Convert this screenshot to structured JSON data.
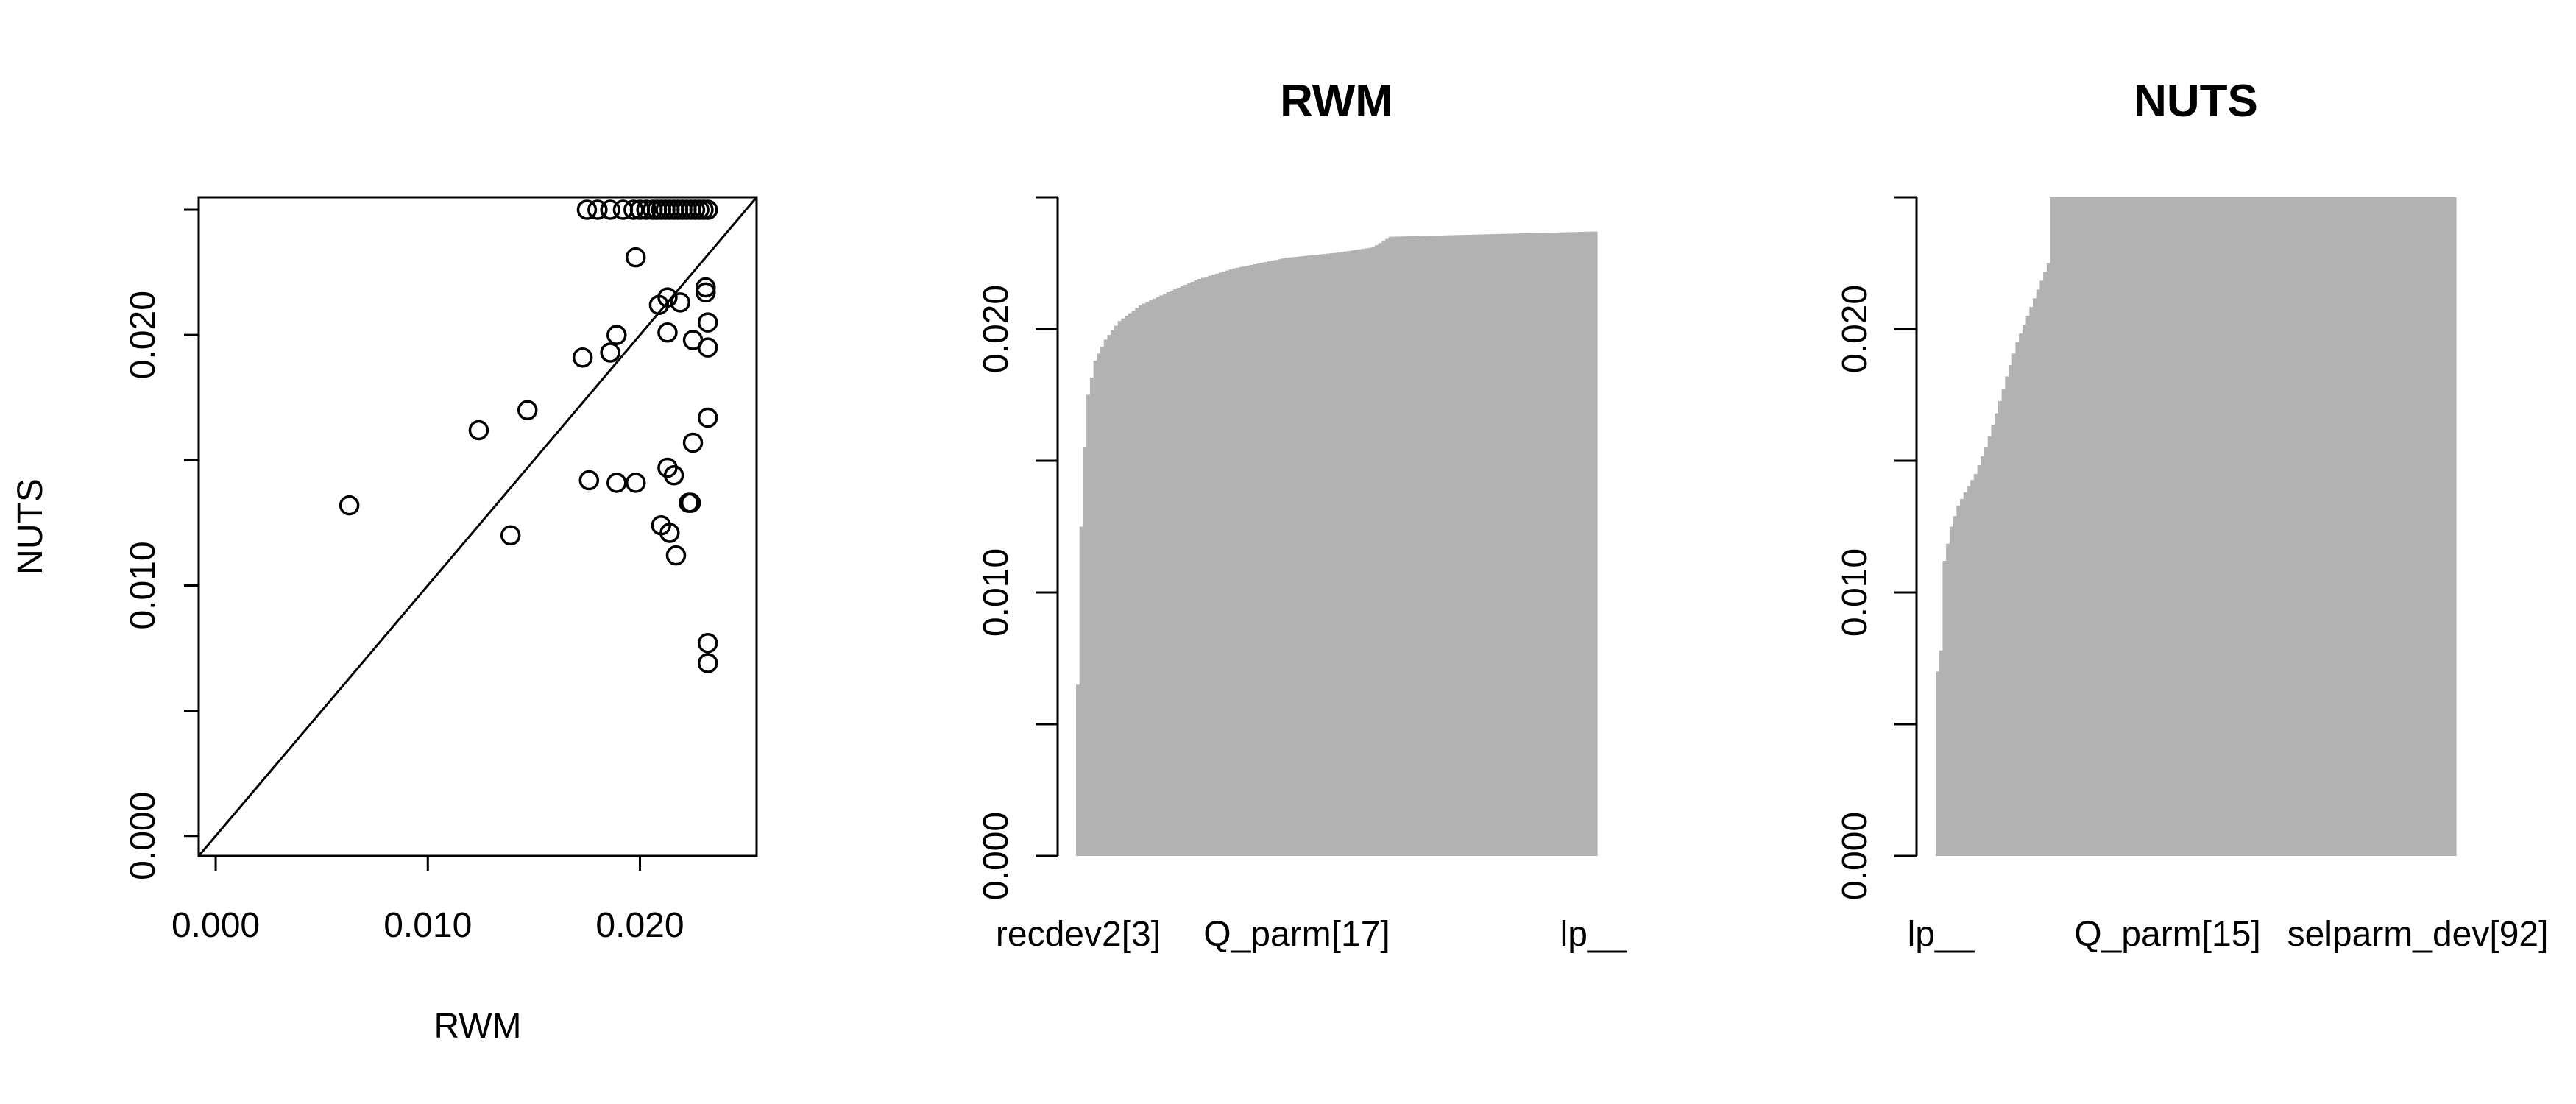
{
  "chart_data": [
    {
      "type": "scatter",
      "title": "",
      "xlabel": "RWM",
      "ylabel": "NUTS",
      "xlim": [
        -0.0008,
        0.0255
      ],
      "ylim": [
        -0.0008,
        0.0255
      ],
      "xticks": [
        0.0,
        0.01,
        0.02
      ],
      "xtick_labels": [
        "0.000",
        "0.010",
        "0.020"
      ],
      "yticks": [
        0.0,
        0.005,
        0.01,
        0.015,
        0.02,
        0.025
      ],
      "ytick_labels": [
        "0.000",
        "",
        "0.010",
        "",
        "0.020",
        ""
      ],
      "reference_line": "y = x",
      "box": true,
      "points": [
        [
          0.0063,
          0.0132
        ],
        [
          0.0124,
          0.0162
        ],
        [
          0.0139,
          0.012
        ],
        [
          0.0147,
          0.017
        ],
        [
          0.0173,
          0.0191
        ],
        [
          0.0176,
          0.0142
        ],
        [
          0.0186,
          0.0193
        ],
        [
          0.0189,
          0.02
        ],
        [
          0.0189,
          0.0141
        ],
        [
          0.0198,
          0.0141
        ],
        [
          0.0198,
          0.0231
        ],
        [
          0.0209,
          0.0212
        ],
        [
          0.021,
          0.0124
        ],
        [
          0.0213,
          0.0201
        ],
        [
          0.0213,
          0.0215
        ],
        [
          0.0213,
          0.0147
        ],
        [
          0.0214,
          0.0121
        ],
        [
          0.0216,
          0.0144
        ],
        [
          0.0217,
          0.0112
        ],
        [
          0.0219,
          0.0213
        ],
        [
          0.0223,
          0.0133
        ],
        [
          0.0224,
          0.0133
        ],
        [
          0.0225,
          0.0198
        ],
        [
          0.0225,
          0.0157
        ],
        [
          0.0231,
          0.0219
        ],
        [
          0.0231,
          0.0217
        ],
        [
          0.0232,
          0.0205
        ],
        [
          0.0232,
          0.0195
        ],
        [
          0.0232,
          0.0167
        ],
        [
          0.0232,
          0.0077
        ],
        [
          0.0232,
          0.0069
        ],
        [
          0.0175,
          0.025
        ],
        [
          0.018,
          0.025
        ],
        [
          0.0186,
          0.025
        ],
        [
          0.0192,
          0.025
        ],
        [
          0.0197,
          0.025
        ],
        [
          0.02,
          0.025
        ],
        [
          0.0203,
          0.025
        ],
        [
          0.0206,
          0.025
        ],
        [
          0.0208,
          0.025
        ],
        [
          0.021,
          0.025
        ],
        [
          0.0212,
          0.025
        ],
        [
          0.0214,
          0.025
        ],
        [
          0.0216,
          0.025
        ],
        [
          0.0218,
          0.025
        ],
        [
          0.022,
          0.025
        ],
        [
          0.0222,
          0.025
        ],
        [
          0.0224,
          0.025
        ],
        [
          0.0226,
          0.025
        ],
        [
          0.0228,
          0.025
        ],
        [
          0.023,
          0.025
        ],
        [
          0.0232,
          0.025
        ]
      ]
    },
    {
      "type": "bar",
      "title": "RWM",
      "xlabel": "",
      "ylabel": "",
      "ylim": [
        0,
        0.025
      ],
      "yticks": [
        0.0,
        0.005,
        0.01,
        0.015,
        0.02,
        0.025
      ],
      "ytick_labels": [
        "0.000",
        "",
        "0.010",
        "",
        "0.020",
        ""
      ],
      "categories_shown": [
        "recdev2[3]",
        "Q_parm[17]",
        "lp__"
      ],
      "n_bars": 150,
      "profile": [
        [
          0,
          0.0065
        ],
        [
          1,
          0.0125
        ],
        [
          2,
          0.0155
        ],
        [
          3,
          0.0175
        ],
        [
          5,
          0.0188
        ],
        [
          8,
          0.0196
        ],
        [
          12,
          0.0203
        ],
        [
          18,
          0.0209
        ],
        [
          26,
          0.0214
        ],
        [
          35,
          0.0219
        ],
        [
          45,
          0.0223
        ],
        [
          60,
          0.0227
        ],
        [
          75,
          0.0229
        ],
        [
          85,
          0.0231
        ],
        [
          90,
          0.0235
        ],
        [
          149,
          0.0237
        ]
      ],
      "values": []
    },
    {
      "type": "bar",
      "title": "NUTS",
      "xlabel": "",
      "ylabel": "",
      "ylim": [
        0,
        0.025
      ],
      "yticks": [
        0.0,
        0.005,
        0.01,
        0.015,
        0.02,
        0.025
      ],
      "ytick_labels": [
        "0.000",
        "",
        "0.010",
        "",
        "0.020",
        ""
      ],
      "categories_shown": [
        "lp__",
        "Q_parm[15]",
        "selparm_dev[92]"
      ],
      "n_bars": 150,
      "profile": [
        [
          0,
          0.007
        ],
        [
          1,
          0.0078
        ],
        [
          2,
          0.0112
        ],
        [
          4,
          0.0125
        ],
        [
          6,
          0.0133
        ],
        [
          8,
          0.0138
        ],
        [
          11,
          0.0145
        ],
        [
          14,
          0.0155
        ],
        [
          17,
          0.0168
        ],
        [
          20,
          0.0182
        ],
        [
          23,
          0.0195
        ],
        [
          26,
          0.0205
        ],
        [
          29,
          0.0215
        ],
        [
          32,
          0.0225
        ],
        [
          33,
          0.025
        ],
        [
          149,
          0.025
        ]
      ],
      "values": []
    }
  ]
}
